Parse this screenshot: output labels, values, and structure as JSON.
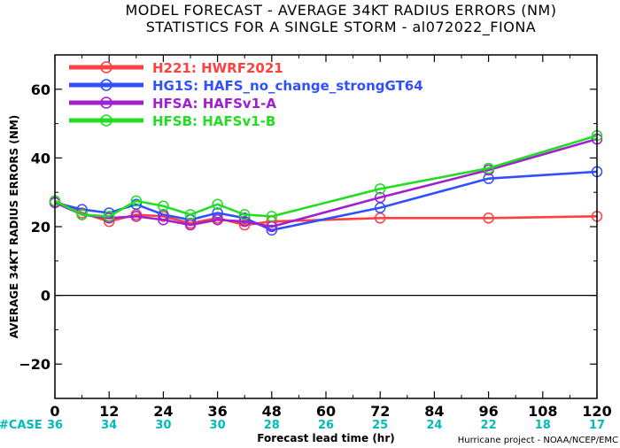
{
  "chart_data": {
    "type": "line",
    "title_line1": "MODEL FORECAST - AVERAGE 34KT RADIUS ERRORS (NM)",
    "title_line2": "STATISTICS FOR A SINGLE STORM - al072022_FIONA",
    "xlabel": "Forecast lead time (hr)",
    "ylabel": "AVERAGE 34KT RADIUS ERRORS (NM)",
    "xlim": [
      0,
      120
    ],
    "ylim": [
      -30,
      70
    ],
    "x_ticks": [
      0,
      12,
      24,
      36,
      48,
      60,
      72,
      84,
      96,
      108,
      120
    ],
    "y_ticks": [
      -20,
      0,
      20,
      40,
      60
    ],
    "zero_line": true,
    "grid": false,
    "legend_position": "top-left",
    "case_label": "#CASE",
    "case_counts": [
      {
        "x": 0,
        "n": 36
      },
      {
        "x": 12,
        "n": 34
      },
      {
        "x": 24,
        "n": 30
      },
      {
        "x": 36,
        "n": 30
      },
      {
        "x": 48,
        "n": 28
      },
      {
        "x": 60,
        "n": 26
      },
      {
        "x": 72,
        "n": 25
      },
      {
        "x": 84,
        "n": 24
      },
      {
        "x": 96,
        "n": 22
      },
      {
        "x": 108,
        "n": 18
      },
      {
        "x": 120,
        "n": 17
      }
    ],
    "credit": "Hurricane project - NOAA/NCEP/EMC",
    "series": [
      {
        "name": "H221: HWRF2021",
        "color": "#ff4040",
        "x": [
          0,
          6,
          12,
          18,
          24,
          30,
          36,
          42,
          48,
          72,
          96,
          120
        ],
        "y": [
          27.5,
          24,
          21.5,
          23.5,
          23,
          21,
          22.5,
          20.5,
          21.5,
          22.5,
          22.5,
          23
        ]
      },
      {
        "name": "HG1S: HAFS_no_change_strongGT64",
        "color": "#3050ff",
        "x": [
          0,
          6,
          12,
          18,
          24,
          30,
          36,
          42,
          48,
          72,
          96,
          120
        ],
        "y": [
          27,
          25,
          24,
          26.5,
          23.5,
          22,
          24,
          22.5,
          19,
          25.5,
          34,
          36
        ]
      },
      {
        "name": "HFSA: HAFSv1-A",
        "color": "#a020d0",
        "x": [
          0,
          6,
          12,
          18,
          24,
          30,
          36,
          42,
          48,
          72,
          96,
          120
        ],
        "y": [
          27,
          23.5,
          22.5,
          23,
          22,
          20.5,
          22,
          21.5,
          20,
          28.5,
          36.5,
          45.5
        ]
      },
      {
        "name": "HFSB: HAFSv1-B",
        "color": "#22dd22",
        "x": [
          0,
          6,
          12,
          18,
          24,
          30,
          36,
          42,
          48,
          72,
          96,
          120
        ],
        "y": [
          27.5,
          23.5,
          23,
          27.5,
          26,
          23.5,
          26.5,
          23.5,
          23,
          31,
          37,
          46.5
        ]
      }
    ]
  },
  "colors": {
    "case_label": "#00bbbb",
    "case_numbers": "#00bbbb",
    "axis": "#000000"
  }
}
